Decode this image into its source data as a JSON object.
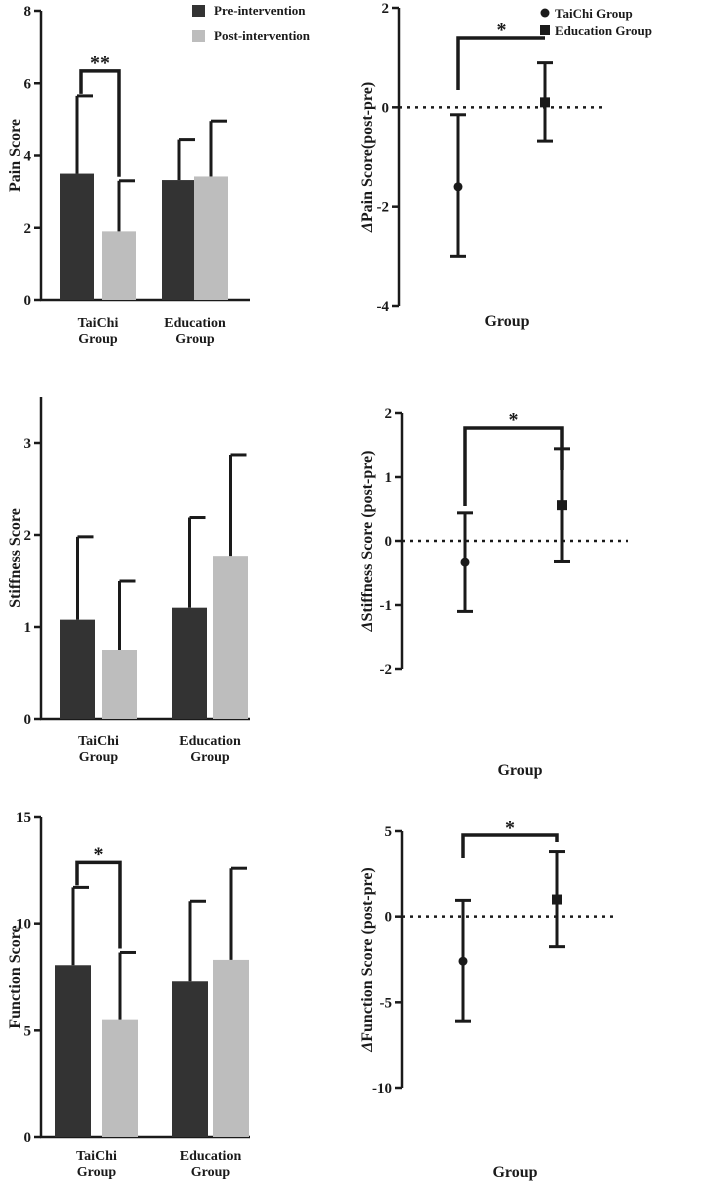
{
  "chart_data": [
    {
      "type": "bar",
      "ylabel": "Pain Score",
      "ylim": [
        0,
        8
      ],
      "yticks": [
        0,
        2,
        4,
        6,
        8
      ],
      "categories": [
        "TaiChi\nGroup",
        "Education\nGroup"
      ],
      "series": [
        {
          "name": "Pre-intervention",
          "color": "#333333",
          "values": [
            3.5,
            3.32
          ],
          "errors": [
            2.15,
            1.12
          ]
        },
        {
          "name": "Post-intervention",
          "color": "#bdbdbd",
          "values": [
            1.9,
            3.42
          ],
          "errors": [
            1.4,
            1.53
          ]
        }
      ],
      "legend": [
        "Pre-intervention",
        "Post-intervention"
      ],
      "annotation": {
        "label": "**",
        "between": [
          0,
          0,
          1,
          0
        ]
      }
    },
    {
      "type": "scatter",
      "ylabel": "ΔPain Score(post-pre)",
      "xlabel": "Group",
      "ylim": [
        -4,
        2
      ],
      "yticks": [
        -4,
        -2,
        0,
        2
      ],
      "points": [
        {
          "name": "TaiChi Group",
          "marker": "circle",
          "value": -1.6,
          "low": -3.0,
          "high": -0.15
        },
        {
          "name": "Education Group",
          "marker": "square",
          "value": 0.1,
          "low": -0.68,
          "high": 0.9
        }
      ],
      "legend": [
        "TaiChi Group",
        "Education Group"
      ],
      "annotation": {
        "label": "*"
      }
    },
    {
      "type": "bar",
      "ylabel": "Stiffness Score",
      "ylim": [
        0,
        3.5
      ],
      "yticks": [
        0,
        1,
        2,
        3
      ],
      "categories": [
        "TaiChi\nGroup",
        "Education\nGroup"
      ],
      "series": [
        {
          "name": "Pre-intervention",
          "color": "#333333",
          "values": [
            1.08,
            1.21
          ],
          "errors": [
            0.9,
            0.98
          ]
        },
        {
          "name": "Post-intervention",
          "color": "#bdbdbd",
          "values": [
            0.75,
            1.77
          ],
          "errors": [
            0.75,
            1.1
          ]
        }
      ]
    },
    {
      "type": "scatter",
      "ylabel": "ΔStiffness Score (post-pre)",
      "xlabel": "Group",
      "ylim": [
        -2,
        2
      ],
      "yticks": [
        -2,
        -1,
        0,
        1,
        2
      ],
      "points": [
        {
          "name": "TaiChi Group",
          "marker": "circle",
          "value": -0.33,
          "low": -1.1,
          "high": 0.44
        },
        {
          "name": "Education Group",
          "marker": "square",
          "value": 0.56,
          "low": -0.32,
          "high": 1.44
        }
      ],
      "annotation": {
        "label": "*"
      }
    },
    {
      "type": "bar",
      "ylabel": "Function Score",
      "ylim": [
        0,
        15
      ],
      "yticks": [
        0,
        5,
        10,
        15
      ],
      "categories": [
        "TaiChi\nGroup",
        "Education\nGroup"
      ],
      "series": [
        {
          "name": "Pre-intervention",
          "color": "#333333",
          "values": [
            8.05,
            7.3
          ],
          "errors": [
            3.65,
            3.75
          ]
        },
        {
          "name": "Post-intervention",
          "color": "#bdbdbd",
          "values": [
            5.5,
            8.3
          ],
          "errors": [
            3.15,
            4.3
          ]
        }
      ],
      "annotation": {
        "label": "*",
        "between": [
          0,
          0,
          1,
          0
        ]
      }
    },
    {
      "type": "scatter",
      "ylabel": "ΔFunction Score (post-pre)",
      "xlabel": "Group",
      "ylim": [
        -10,
        5
      ],
      "yticks": [
        -10,
        -5,
        0,
        5
      ],
      "points": [
        {
          "name": "TaiChi Group",
          "marker": "circle",
          "value": -2.6,
          "low": -6.1,
          "high": 0.95
        },
        {
          "name": "Education Group",
          "marker": "square",
          "value": 1.0,
          "low": -1.75,
          "high": 3.8
        }
      ],
      "annotation": {
        "label": "*"
      }
    }
  ]
}
